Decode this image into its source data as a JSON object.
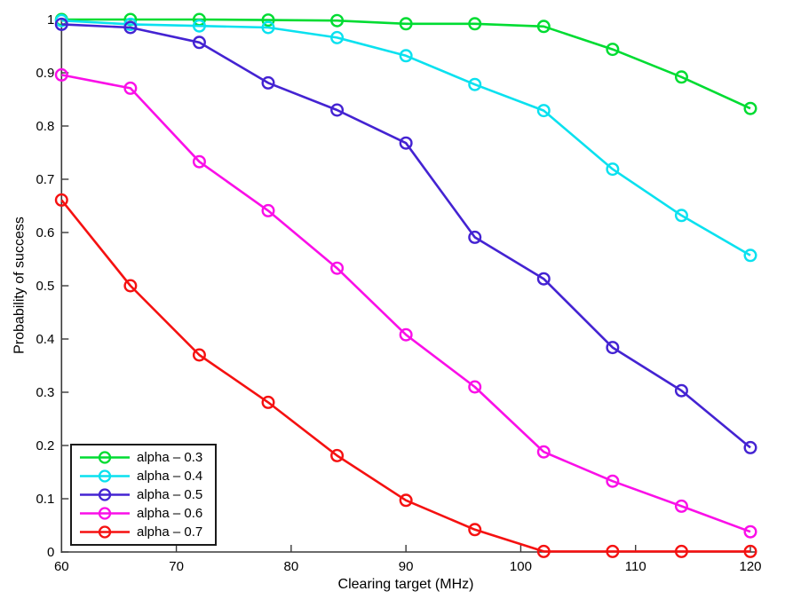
{
  "chart_data": {
    "type": "line",
    "title": "",
    "xlabel": "Clearing target (MHz)",
    "ylabel": "Probability of success",
    "xlim": [
      60,
      120
    ],
    "ylim": [
      0,
      1
    ],
    "grid": false,
    "legend_position": "bottom-left",
    "x_tick_labels": [
      "60",
      "70",
      "80",
      "90",
      "100",
      "110",
      "120"
    ],
    "x_ticks": [
      60,
      70,
      80,
      90,
      100,
      110,
      120
    ],
    "y_tick_labels": [
      "0",
      "0.1",
      "0.2",
      "0.3",
      "0.4",
      "0.5",
      "0.6",
      "0.7",
      "0.8",
      "0.9",
      "1"
    ],
    "y_ticks": [
      0,
      0.1,
      0.2,
      0.3,
      0.4,
      0.5,
      0.6,
      0.7,
      0.8,
      0.9,
      1
    ],
    "x": [
      60,
      66,
      72,
      78,
      84,
      90,
      96,
      102,
      108,
      114,
      120
    ],
    "series": [
      {
        "name": "alpha – 0.3",
        "color": "#00dc32",
        "values": [
          1.0,
          1.0,
          1.0,
          0.999,
          0.998,
          0.992,
          0.992,
          0.987,
          0.944,
          0.892,
          0.833
        ]
      },
      {
        "name": "alpha – 0.4",
        "color": "#0ae1ef",
        "values": [
          0.998,
          0.991,
          0.988,
          0.985,
          0.966,
          0.932,
          0.878,
          0.829,
          0.719,
          0.632,
          0.557
        ]
      },
      {
        "name": "alpha – 0.5",
        "color": "#4423d2",
        "values": [
          0.991,
          0.985,
          0.957,
          0.881,
          0.83,
          0.768,
          0.591,
          0.513,
          0.384,
          0.303,
          0.196
        ]
      },
      {
        "name": "alpha – 0.6",
        "color": "#fa0fe8",
        "values": [
          0.896,
          0.871,
          0.733,
          0.641,
          0.533,
          0.408,
          0.31,
          0.188,
          0.133,
          0.086,
          0.038
        ]
      },
      {
        "name": "alpha – 0.7",
        "color": "#f51111",
        "values": [
          0.661,
          0.5,
          0.37,
          0.281,
          0.181,
          0.097,
          0.042,
          0.001,
          0.001,
          0.001,
          0.001
        ]
      }
    ],
    "axis_color": "#3a3a3a"
  }
}
